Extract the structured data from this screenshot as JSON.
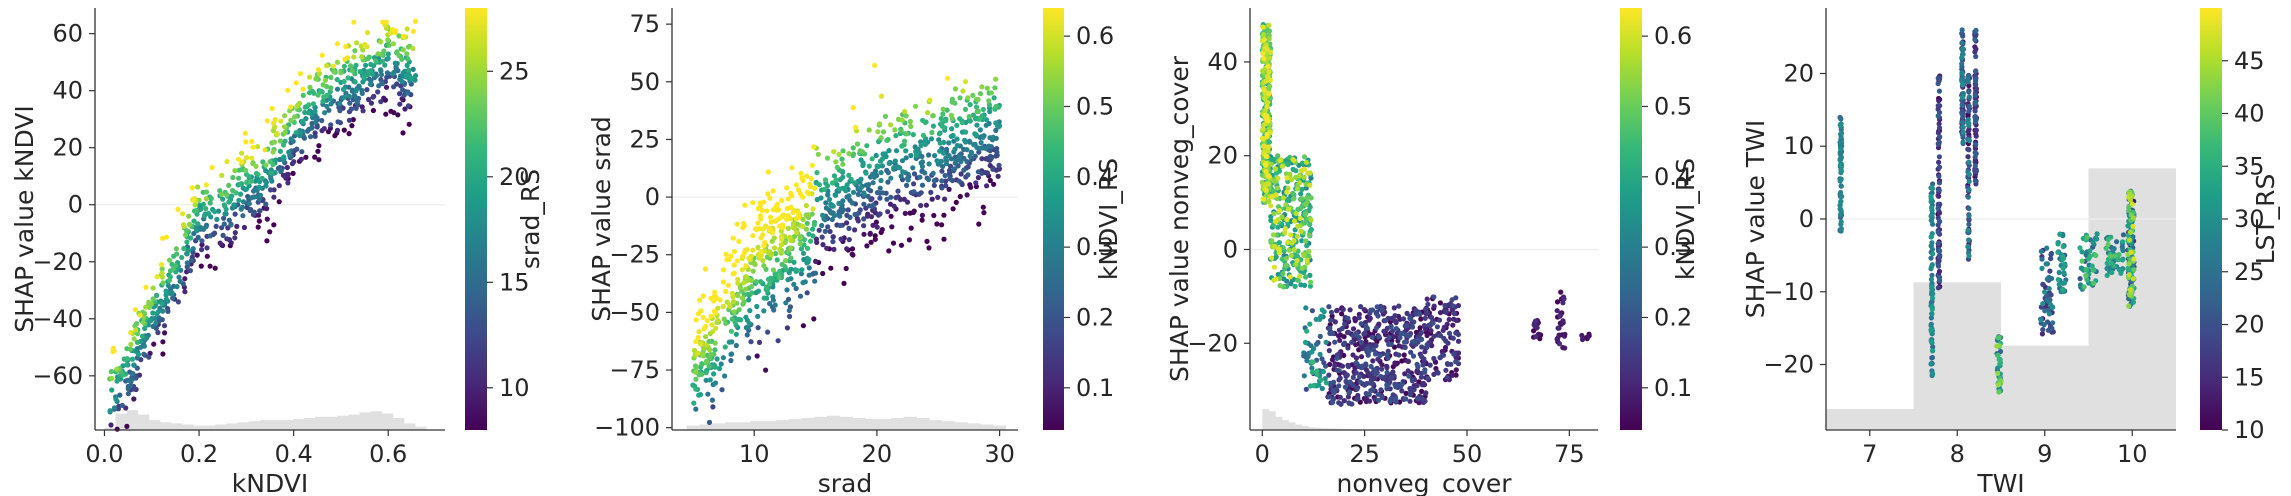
{
  "figure": {
    "cmap": [
      "#440154",
      "#482878",
      "#3e4989",
      "#31688e",
      "#26828e",
      "#1f9e89",
      "#35b779",
      "#6ece58",
      "#b5de2b",
      "#fde725"
    ],
    "hist_color": "#e0e0e0",
    "zero_line_color": "#eeeeee"
  },
  "chart_data": [
    {
      "type": "scatter",
      "subtype": "shap-dependence",
      "xlabel": "kNDVI",
      "ylabel": "SHAP value kNDVI",
      "color_label": "srad_RS",
      "xlim": [
        -0.02,
        0.72
      ],
      "ylim": [
        -79,
        69
      ],
      "xticks": [
        0.0,
        0.2,
        0.4,
        0.6
      ],
      "xtick_labels": [
        "0.0",
        "0.2",
        "0.4",
        "0.6"
      ],
      "yticks": [
        -60,
        -40,
        -20,
        0,
        20,
        40,
        60
      ],
      "ytick_labels": [
        "−60",
        "−40",
        "−20",
        "0",
        "20",
        "40",
        "60"
      ],
      "clim": [
        8,
        28
      ],
      "cticks": [
        10,
        15,
        20,
        25
      ],
      "ctick_labels": [
        "10",
        "15",
        "20",
        "25"
      ],
      "curve": [
        [
          0.01,
          -70
        ],
        [
          0.05,
          -58
        ],
        [
          0.1,
          -40
        ],
        [
          0.15,
          -25
        ],
        [
          0.2,
          -5
        ],
        [
          0.25,
          -2
        ],
        [
          0.3,
          5
        ],
        [
          0.35,
          10
        ],
        [
          0.4,
          25
        ],
        [
          0.45,
          35
        ],
        [
          0.5,
          40
        ],
        [
          0.55,
          45
        ],
        [
          0.6,
          50
        ],
        [
          0.66,
          45
        ]
      ],
      "x_range": [
        0.01,
        0.66
      ],
      "spread": 8,
      "n_points": 900,
      "hist": [
        0.1,
        0.75,
        0.9,
        0.7,
        0.45,
        0.35,
        0.3,
        0.25,
        0.2,
        0.2,
        0.25,
        0.3,
        0.35,
        0.4,
        0.45,
        0.45,
        0.45,
        0.5,
        0.55,
        0.6,
        0.6,
        0.65,
        0.7,
        0.8,
        0.85,
        0.75,
        0.55,
        0.3,
        0.15
      ],
      "hist_range": [
        0.0,
        0.68
      ]
    },
    {
      "type": "scatter",
      "subtype": "shap-dependence",
      "xlabel": "srad",
      "ylabel": "SHAP value srad",
      "color_label": "kNDVI_RS",
      "xlim": [
        3.3,
        31.5
      ],
      "ylim": [
        -101,
        82
      ],
      "xticks": [
        10,
        20,
        30
      ],
      "xtick_labels": [
        "10",
        "20",
        "30"
      ],
      "yticks": [
        -100,
        -75,
        -50,
        -25,
        0,
        25,
        50,
        75
      ],
      "ytick_labels": [
        "−100",
        "−75",
        "−50",
        "−25",
        "0",
        "25",
        "50",
        "75"
      ],
      "clim": [
        0.04,
        0.64
      ],
      "cticks": [
        0.1,
        0.2,
        0.3,
        0.4,
        0.5,
        0.6
      ],
      "ctick_labels": [
        "0.1",
        "0.2",
        "0.3",
        "0.4",
        "0.5",
        "0.6"
      ],
      "curve": [
        [
          5,
          -75
        ],
        [
          8,
          -50
        ],
        [
          10,
          -30
        ],
        [
          12,
          -25
        ],
        [
          15,
          -8
        ],
        [
          18,
          0
        ],
        [
          20,
          8
        ],
        [
          24,
          15
        ],
        [
          27,
          20
        ],
        [
          30,
          28
        ]
      ],
      "x_range": [
        5,
        30
      ],
      "spread": 14,
      "n_points": 1100,
      "hist": [
        0.2,
        0.25,
        0.3,
        0.35,
        0.35,
        0.4,
        0.4,
        0.45,
        0.5,
        0.55,
        0.6,
        0.65,
        0.6,
        0.55,
        0.5,
        0.5,
        0.55,
        0.6,
        0.55,
        0.45,
        0.4,
        0.35,
        0.3,
        0.25,
        0.2
      ],
      "hist_range": [
        4.5,
        30.5
      ]
    },
    {
      "type": "scatter",
      "subtype": "shap-dependence",
      "xlabel": "nonveg_cover",
      "ylabel": "SHAP value nonveg_cover",
      "color_label": "kNDVI_RS",
      "xlim": [
        -3,
        82
      ],
      "ylim": [
        -38.5,
        51.5
      ],
      "xticks": [
        0,
        25,
        50,
        75
      ],
      "xtick_labels": [
        "0",
        "25",
        "50",
        "75"
      ],
      "yticks": [
        -20,
        0,
        20,
        40
      ],
      "ytick_labels": [
        "−20",
        "0",
        "20",
        "40"
      ],
      "clim": [
        0.04,
        0.64
      ],
      "cticks": [
        0.1,
        0.2,
        0.3,
        0.4,
        0.5,
        0.6
      ],
      "ctick_labels": [
        "0.1",
        "0.2",
        "0.3",
        "0.4",
        "0.5",
        "0.6"
      ],
      "clusters": [
        {
          "x": [
            0,
            2
          ],
          "y": [
            10,
            48
          ],
          "c": [
            0.35,
            0.64
          ],
          "n": 320
        },
        {
          "x": [
            2,
            12
          ],
          "y": [
            -8,
            20
          ],
          "c": [
            0.3,
            0.62
          ],
          "n": 320
        },
        {
          "x": [
            10,
            16
          ],
          "y": [
            -30,
            -12
          ],
          "c": [
            0.15,
            0.45
          ],
          "n": 60
        },
        {
          "x": [
            16,
            40
          ],
          "y": [
            -33,
            -12
          ],
          "c": [
            0.04,
            0.2
          ],
          "n": 520
        },
        {
          "x": [
            40,
            48
          ],
          "y": [
            -28,
            -10
          ],
          "c": [
            0.04,
            0.18
          ],
          "n": 120
        },
        {
          "x": [
            66,
            68
          ],
          "y": [
            -19,
            -15
          ],
          "c": [
            0.04,
            0.12
          ],
          "n": 20
        },
        {
          "x": [
            72,
            74
          ],
          "y": [
            -22,
            -8
          ],
          "c": [
            0.04,
            0.12
          ],
          "n": 30
        },
        {
          "x": [
            78,
            80
          ],
          "y": [
            -20,
            -18
          ],
          "c": [
            0.04,
            0.1
          ],
          "n": 6
        }
      ],
      "hist": [
        0.95,
        0.85,
        0.6,
        0.45,
        0.35,
        0.25,
        0.18,
        0.12,
        0.1,
        0.08,
        0.07,
        0.06,
        0.05,
        0.04,
        0.03,
        0.03,
        0.02,
        0.02,
        0.02,
        0.01,
        0.01,
        0.01,
        0.01,
        0.01,
        0.01
      ],
      "hist_range": [
        0,
        40
      ]
    },
    {
      "type": "scatter",
      "subtype": "shap-dependence",
      "xlabel": "TWI",
      "ylabel": "SHAP value TWI",
      "color_label": "LST_RS",
      "xlim": [
        6.5,
        10.5
      ],
      "ylim": [
        -29,
        29
      ],
      "xticks": [
        7,
        8,
        9,
        10
      ],
      "xtick_labels": [
        "7",
        "8",
        "9",
        "10"
      ],
      "yticks": [
        -20,
        -10,
        0,
        10,
        20
      ],
      "ytick_labels": [
        "−20",
        "−10",
        "0",
        "10",
        "20"
      ],
      "clim": [
        10,
        50
      ],
      "cticks": [
        10,
        15,
        20,
        25,
        30,
        35,
        40,
        45
      ],
      "ctick_labels": [
        "10",
        "15",
        "20",
        "25",
        "30",
        "35",
        "40",
        "45"
      ],
      "clusters": [
        {
          "x": [
            6.66,
            6.68
          ],
          "y": [
            -2,
            14
          ],
          "c": [
            22,
            30
          ],
          "n": 70
        },
        {
          "x": [
            7.7,
            7.72
          ],
          "y": [
            -22,
            5
          ],
          "c": [
            22,
            32
          ],
          "n": 80
        },
        {
          "x": [
            7.78,
            7.8
          ],
          "y": [
            -10,
            20
          ],
          "c": [
            10,
            22
          ],
          "n": 90
        },
        {
          "x": [
            8.05,
            8.07
          ],
          "y": [
            10,
            26
          ],
          "c": [
            12,
            30
          ],
          "n": 80
        },
        {
          "x": [
            8.12,
            8.14
          ],
          "y": [
            -6,
            20
          ],
          "c": [
            10,
            30
          ],
          "n": 80
        },
        {
          "x": [
            8.2,
            8.22
          ],
          "y": [
            4,
            26
          ],
          "c": [
            10,
            24
          ],
          "n": 80
        },
        {
          "x": [
            8.45,
            8.5
          ],
          "y": [
            -24,
            -16
          ],
          "c": [
            20,
            45
          ],
          "n": 40
        },
        {
          "x": [
            8.95,
            9.1
          ],
          "y": [
            -16,
            -4
          ],
          "c": [
            12,
            30
          ],
          "n": 60
        },
        {
          "x": [
            9.15,
            9.25
          ],
          "y": [
            -10,
            -2
          ],
          "c": [
            20,
            35
          ],
          "n": 40
        },
        {
          "x": [
            9.4,
            9.6
          ],
          "y": [
            -10,
            -2
          ],
          "c": [
            20,
            40
          ],
          "n": 50
        },
        {
          "x": [
            9.7,
            9.9
          ],
          "y": [
            -8,
            -2
          ],
          "c": [
            20,
            40
          ],
          "n": 50
        },
        {
          "x": [
            9.95,
            10.02
          ],
          "y": [
            -12,
            4
          ],
          "c": [
            12,
            48
          ],
          "n": 140
        }
      ],
      "bars": [
        [
          6.5,
          7.5,
          0.05
        ],
        [
          7.5,
          8.5,
          0.35
        ],
        [
          8.5,
          9.5,
          0.2
        ],
        [
          9.5,
          10.5,
          0.62
        ]
      ]
    }
  ]
}
